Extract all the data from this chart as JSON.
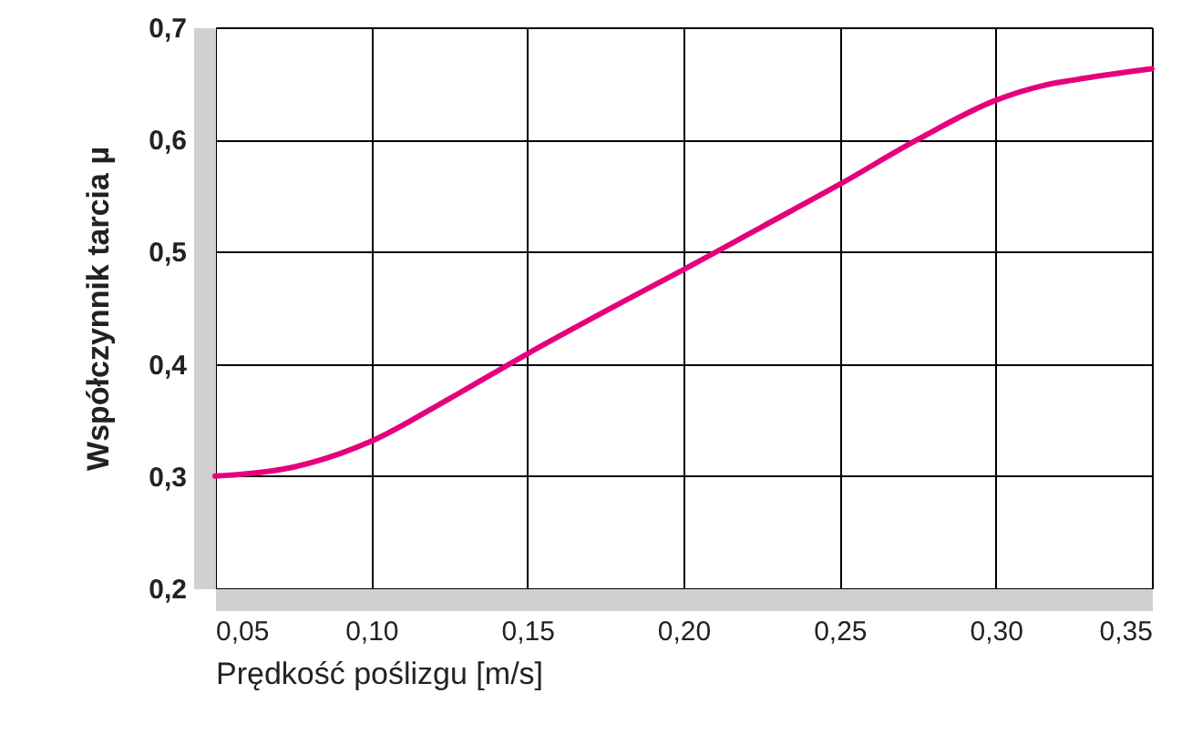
{
  "chart_data": {
    "type": "line",
    "xlabel": "Prędkość poślizgu [m/s]",
    "ylabel": "Współczynnik tarcia µ",
    "x": [
      0.05,
      0.06,
      0.075,
      0.09,
      0.1,
      0.125,
      0.15,
      0.175,
      0.2,
      0.225,
      0.25,
      0.275,
      0.3,
      0.315,
      0.325,
      0.35
    ],
    "series": [
      {
        "color": "#e5007e",
        "values": [
          0.3,
          0.302,
          0.308,
          0.32,
          0.331,
          0.369,
          0.409,
          0.447,
          0.484,
          0.522,
          0.56,
          0.6,
          0.635,
          0.648,
          0.653,
          0.663
        ]
      }
    ],
    "xlim": [
      0.05,
      0.35
    ],
    "ylim": [
      0.2,
      0.7
    ],
    "xticks": [
      {
        "value": 0.05,
        "label": "0,05"
      },
      {
        "value": 0.1,
        "label": "0,10"
      },
      {
        "value": 0.15,
        "label": "0,15"
      },
      {
        "value": 0.2,
        "label": "0,20"
      },
      {
        "value": 0.25,
        "label": "0,25"
      },
      {
        "value": 0.3,
        "label": "0,30"
      },
      {
        "value": 0.35,
        "label": "0,35"
      }
    ],
    "yticks": [
      {
        "value": 0.2,
        "label": "0,2"
      },
      {
        "value": 0.3,
        "label": "0,3"
      },
      {
        "value": 0.4,
        "label": "0,4"
      },
      {
        "value": 0.5,
        "label": "0,5"
      },
      {
        "value": 0.6,
        "label": "0,6"
      },
      {
        "value": 0.7,
        "label": "0,7"
      }
    ],
    "grid": true,
    "marker": "none",
    "line_style": "solid"
  }
}
